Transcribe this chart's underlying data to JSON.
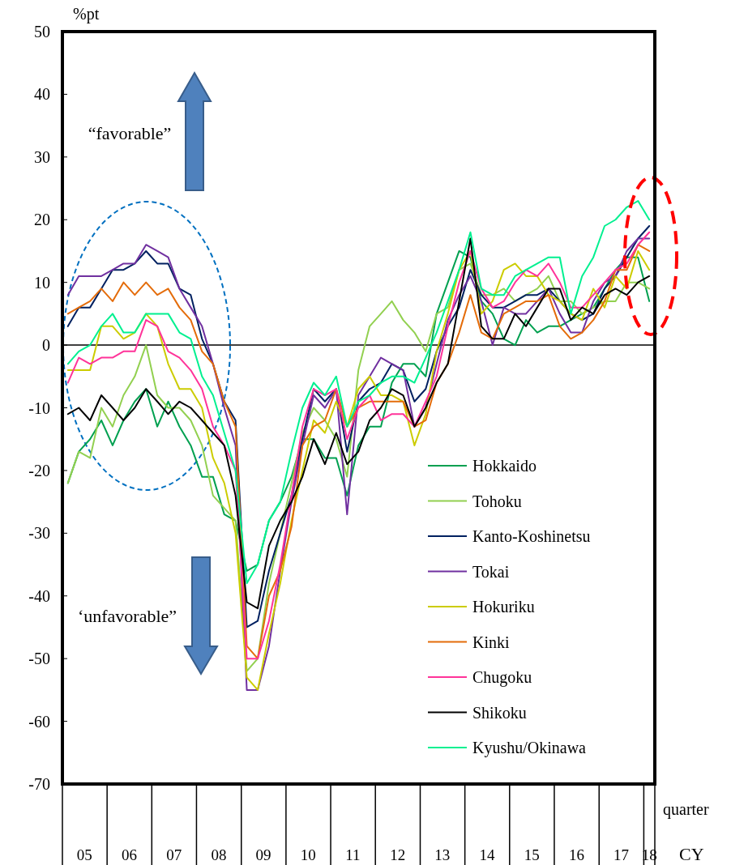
{
  "chart_data": {
    "type": "line",
    "ylabel": "%pt",
    "xlabel": "quarter",
    "annotations": [
      "“favorable”",
      "‘unfavorable”",
      "CY"
    ],
    "x": [
      "2005-02-15",
      "2005-05-15",
      "2005-08-15",
      "2005-11-15",
      "2006-02-15",
      "2006-05-15",
      "2006-08-15",
      "2006-11-15",
      "2007-02-15",
      "2007-05-15",
      "2007-08-15",
      "2007-11-15",
      "2008-02-15",
      "2008-05-15",
      "2008-08-15",
      "2008-11-15",
      "2009-02-15",
      "2009-05-15",
      "2009-08-15",
      "2009-11-15",
      "2010-02-15",
      "2010-05-15",
      "2010-08-15",
      "2010-11-15",
      "2011-02-15",
      "2011-05-15",
      "2011-08-15",
      "2011-11-15",
      "2012-02-15",
      "2012-05-15",
      "2012-08-15",
      "2012-11-15",
      "2013-02-15",
      "2013-05-15",
      "2013-08-15",
      "2013-11-15",
      "2014-02-15",
      "2014-05-15",
      "2014-08-15",
      "2014-11-15",
      "2015-02-15",
      "2015-05-15",
      "2015-08-15",
      "2015-11-15",
      "2016-02-15",
      "2016-05-15",
      "2016-08-15",
      "2016-11-15",
      "2017-02-15",
      "2017-05-15",
      "2017-08-15",
      "2017-11-15",
      "2018-02-15"
    ],
    "xlim": [
      "2005-01-01",
      "2018-04-01"
    ],
    "xticks": [
      {
        "value": "2005-01-01",
        "label": null
      },
      {
        "value": "2005-07-01",
        "label": "05"
      },
      {
        "value": "2006-01-01",
        "label": null
      },
      {
        "value": "2006-07-01",
        "label": "06"
      },
      {
        "value": "2007-01-01",
        "label": null
      },
      {
        "value": "2007-07-01",
        "label": "07"
      },
      {
        "value": "2008-01-01",
        "label": null
      },
      {
        "value": "2008-07-01",
        "label": "08"
      },
      {
        "value": "2009-01-01",
        "label": null
      },
      {
        "value": "2009-07-01",
        "label": "09"
      },
      {
        "value": "2010-01-01",
        "label": null
      },
      {
        "value": "2010-07-01",
        "label": "10"
      },
      {
        "value": "2011-01-01",
        "label": null
      },
      {
        "value": "2011-07-01",
        "label": "11"
      },
      {
        "value": "2012-01-01",
        "label": null
      },
      {
        "value": "2012-07-01",
        "label": "12"
      },
      {
        "value": "2013-01-01",
        "label": null
      },
      {
        "value": "2013-07-01",
        "label": "13"
      },
      {
        "value": "2014-01-01",
        "label": null
      },
      {
        "value": "2014-07-01",
        "label": "14"
      },
      {
        "value": "2015-01-01",
        "label": null
      },
      {
        "value": "2015-07-01",
        "label": "15"
      },
      {
        "value": "2016-01-01",
        "label": null
      },
      {
        "value": "2016-07-01",
        "label": "16"
      },
      {
        "value": "2017-01-01",
        "label": null
      },
      {
        "value": "2017-07-01",
        "label": "17"
      },
      {
        "value": "2018-01-01",
        "label": null
      },
      {
        "value": "2018-02-15",
        "label": "18"
      },
      {
        "value": "2018-04-01",
        "label": null
      }
    ],
    "ylim": [
      -70,
      50
    ],
    "yticks": [
      -70,
      -60,
      -50,
      -40,
      -30,
      -20,
      -10,
      0,
      10,
      20,
      30,
      40,
      50
    ],
    "grid": false,
    "legend": "bottom right",
    "ref_lines": [
      {
        "axis": "y",
        "value": 0,
        "color": "#000000"
      }
    ],
    "series": [
      {
        "name": "Hokkaido",
        "color": "#00a050",
        "values": [
          -22,
          -17,
          -15,
          -12,
          -16,
          -12,
          -9,
          -7,
          -13,
          -9,
          -13,
          -16,
          -21,
          -21,
          -27,
          -28,
          -36,
          -35,
          -28,
          -25,
          -21,
          -15,
          -15,
          -18,
          -18,
          -24,
          -16,
          -13,
          -13,
          -6,
          -3,
          -3,
          -5,
          5,
          10,
          15,
          14,
          7,
          5,
          1,
          0,
          4,
          2,
          3,
          3,
          4,
          5,
          6,
          9,
          12,
          14,
          14,
          7
        ]
      },
      {
        "name": "Tohoku",
        "color": "#92d050",
        "values": [
          -22,
          -17,
          -18,
          -10,
          -13,
          -8,
          -5,
          0,
          -8,
          -10,
          -10,
          -12,
          -16,
          -24,
          -26,
          -28,
          -52,
          -50,
          -38,
          -30,
          -22,
          -14,
          -10,
          -12,
          -15,
          -21,
          -4,
          3,
          5,
          7,
          4,
          2,
          -1,
          5,
          6,
          12,
          13,
          8,
          8,
          9,
          7,
          8,
          9,
          11,
          7,
          7,
          5,
          6,
          7,
          7,
          10,
          10,
          9
        ]
      },
      {
        "name": "Kanto-Koshinetsu",
        "color": "#002060",
        "values": [
          3,
          6,
          6,
          9,
          12,
          12,
          13,
          15,
          13,
          13,
          9,
          8,
          1,
          -3,
          -9,
          -12,
          -45,
          -44,
          -36,
          -30,
          -24,
          -15,
          -7,
          -9,
          -7,
          -17,
          -9,
          -7,
          -6,
          -3,
          -4,
          -9,
          -7,
          -1,
          3,
          6,
          12,
          8,
          6,
          6,
          7,
          8,
          8,
          9,
          7,
          5,
          4,
          5,
          9,
          11,
          14,
          17,
          19
        ]
      },
      {
        "name": "Tokai",
        "color": "#7030a0",
        "values": [
          8,
          11,
          11,
          11,
          12,
          13,
          13,
          16,
          15,
          14,
          9,
          6,
          3,
          -3,
          -10,
          -16,
          -55,
          -55,
          -48,
          -36,
          -25,
          -16,
          -8,
          -10,
          -7,
          -27,
          -8,
          -5,
          -2,
          -3,
          -4,
          -13,
          -10,
          -3,
          4,
          8,
          11,
          7,
          0,
          6,
          5,
          5,
          7,
          9,
          5,
          2,
          2,
          7,
          10,
          11,
          15,
          17,
          17
        ]
      },
      {
        "name": "Hokuriku",
        "color": "#cccc00",
        "values": [
          -4,
          -4,
          -4,
          3,
          3,
          1,
          2,
          5,
          3,
          -3,
          -7,
          -7,
          -10,
          -18,
          -22,
          -30,
          -53,
          -55,
          -46,
          -38,
          -28,
          -20,
          -12,
          -14,
          -9,
          -13,
          -7,
          -5,
          -8,
          -8,
          -9,
          -16,
          -11,
          -1,
          5,
          12,
          15,
          5,
          7,
          12,
          13,
          11,
          11,
          8,
          7,
          5,
          4,
          9,
          6,
          11,
          9,
          15,
          12
        ]
      },
      {
        "name": "Kinki",
        "color": "#e46c0a",
        "values": [
          5,
          6,
          7,
          9,
          7,
          10,
          8,
          10,
          8,
          9,
          6,
          4,
          -1,
          -3,
          -9,
          -13,
          -48,
          -50,
          -40,
          -36,
          -29,
          -16,
          -13,
          -12,
          -7,
          -13,
          -10,
          -9,
          -9,
          -9,
          -9,
          -13,
          -12,
          -6,
          -3,
          2,
          8,
          2,
          1,
          5,
          6,
          7,
          7,
          8,
          3,
          1,
          2,
          4,
          7,
          12,
          12,
          16,
          15
        ]
      },
      {
        "name": "Chugoku",
        "color": "#ff3399",
        "values": [
          -6,
          -2,
          -3,
          -2,
          -2,
          -1,
          -1,
          4,
          3,
          -1,
          -2,
          -4,
          -7,
          -13,
          -16,
          -20,
          -50,
          -50,
          -44,
          -35,
          -24,
          -13,
          -7,
          -8,
          -7,
          -15,
          -10,
          -8,
          -12,
          -11,
          -11,
          -13,
          -9,
          -5,
          3,
          10,
          15,
          9,
          6,
          7,
          10,
          12,
          11,
          13,
          10,
          6,
          6,
          8,
          10,
          12,
          13,
          16,
          18
        ]
      },
      {
        "name": "Shikoku",
        "color": "#000000",
        "values": [
          -11,
          -10,
          -12,
          -8,
          -10,
          -12,
          -10,
          -7,
          -9,
          -11,
          -9,
          -10,
          -12,
          -14,
          -16,
          -24,
          -41,
          -42,
          -32,
          -28,
          -25,
          -21,
          -15,
          -19,
          -14,
          -19,
          -17,
          -12,
          -10,
          -7,
          -8,
          -13,
          -10,
          -6,
          -3,
          7,
          17,
          3,
          1,
          1,
          5,
          3,
          6,
          9,
          9,
          4,
          6,
          5,
          8,
          9,
          8,
          10,
          11
        ]
      },
      {
        "name": "Kyushu/Okinawa",
        "color": "#00f090",
        "values": [
          -3,
          -1,
          0,
          3,
          5,
          2,
          2,
          5,
          5,
          5,
          2,
          1,
          -5,
          -8,
          -14,
          -20,
          -38,
          -35,
          -28,
          -25,
          -17,
          -10,
          -6,
          -8,
          -5,
          -13,
          -9,
          -8,
          -6,
          -5,
          -5,
          -6,
          -2,
          2,
          7,
          12,
          18,
          9,
          8,
          8,
          11,
          12,
          13,
          14,
          14,
          5,
          11,
          14,
          19,
          20,
          22,
          23,
          20
        ]
      }
    ]
  }
}
